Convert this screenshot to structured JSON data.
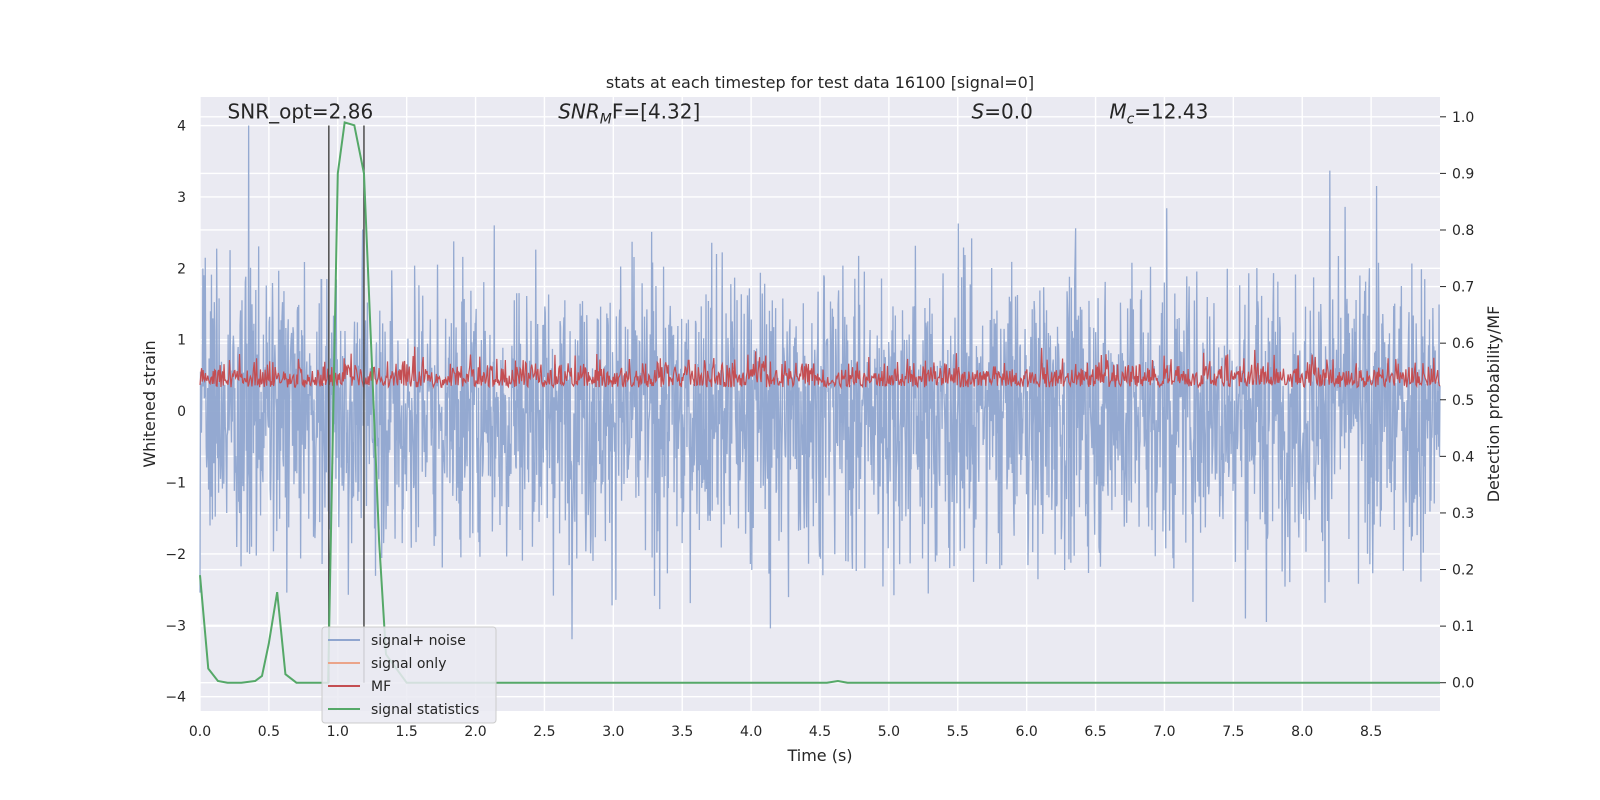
{
  "chart_data": {
    "type": "line",
    "title": "stats at each timestep for test data 16100 [signal=0]",
    "xlabel": "Time (s)",
    "ylabel": "Whitened strain",
    "y2label": "Detection probability/MF",
    "xlim": [
      0,
      9.0
    ],
    "ylim": [
      -4.2,
      4.4
    ],
    "y2lim": [
      -0.05,
      1.035
    ],
    "grid": true,
    "legend_position": "lower-left",
    "x_ticks": [
      "0.0",
      "0.5",
      "1.0",
      "1.5",
      "2.0",
      "2.5",
      "3.0",
      "3.5",
      "4.0",
      "4.5",
      "5.0",
      "5.5",
      "6.0",
      "6.5",
      "7.0",
      "7.5",
      "8.0",
      "8.5"
    ],
    "y_ticks": [
      "4",
      "3",
      "2",
      "1",
      "0",
      "−1",
      "−2",
      "−3",
      "−4"
    ],
    "y2_ticks": [
      "1.0",
      "0.9",
      "0.8",
      "0.7",
      "0.6",
      "0.5",
      "0.4",
      "0.3",
      "0.2",
      "0.1",
      "0.0"
    ],
    "annotations": [
      {
        "text": "SNR_opt=2.86",
        "x": 0.2,
        "y": 4.1
      },
      {
        "text_main": "SNR",
        "text_sub": "M",
        "text_rest": "F=[4.32]",
        "x": 2.6,
        "y": 4.1
      },
      {
        "text_main": "S",
        "text_rest": "=0.0",
        "x": 5.6,
        "y": 4.1
      },
      {
        "text_main": "M",
        "text_sub": "c",
        "text_rest": "=12.43",
        "x": 6.6,
        "y": 4.1
      }
    ],
    "vlines": [
      0.935,
      1.19
    ],
    "series": [
      {
        "name": "signal+ noise",
        "color": "#8fa5cf",
        "axis": "left",
        "description": "whitened noise trace",
        "amplitude_range": [
          -3.9,
          4.0
        ]
      },
      {
        "name": "signal only",
        "color": "#eba48a",
        "axis": "left",
        "values": []
      },
      {
        "name": "MF",
        "color": "#c44e52",
        "axis": "right",
        "description": "matched filter output",
        "range": [
          0.5,
          0.6
        ]
      },
      {
        "name": "signal statistics",
        "color": "#55a868",
        "axis": "right",
        "x": [
          0.0,
          0.06,
          0.13,
          0.2,
          0.3,
          0.4,
          0.45,
          0.5,
          0.56,
          0.62,
          0.7,
          0.85,
          0.93,
          1.0,
          1.05,
          1.12,
          1.19,
          1.25,
          1.3,
          1.35,
          1.5,
          2.0,
          3.0,
          4.0,
          4.55,
          4.63,
          4.7,
          5.0,
          6.0,
          7.0,
          8.0,
          9.0
        ],
        "y": [
          0.19,
          0.025,
          0.003,
          0.0,
          0.0,
          0.003,
          0.012,
          0.07,
          0.16,
          0.015,
          0.0,
          0.0,
          0.0,
          0.9,
          0.99,
          0.985,
          0.9,
          0.55,
          0.25,
          0.05,
          0.0,
          0.0,
          0.0,
          0.0,
          0.0,
          0.003,
          0.0,
          0.0,
          0.0,
          0.0,
          0.0,
          0.0
        ]
      }
    ],
    "colors": {
      "axes_bg": "#eaeaf2",
      "grid": "#ffffff",
      "vline": "#4d4d4d"
    }
  }
}
